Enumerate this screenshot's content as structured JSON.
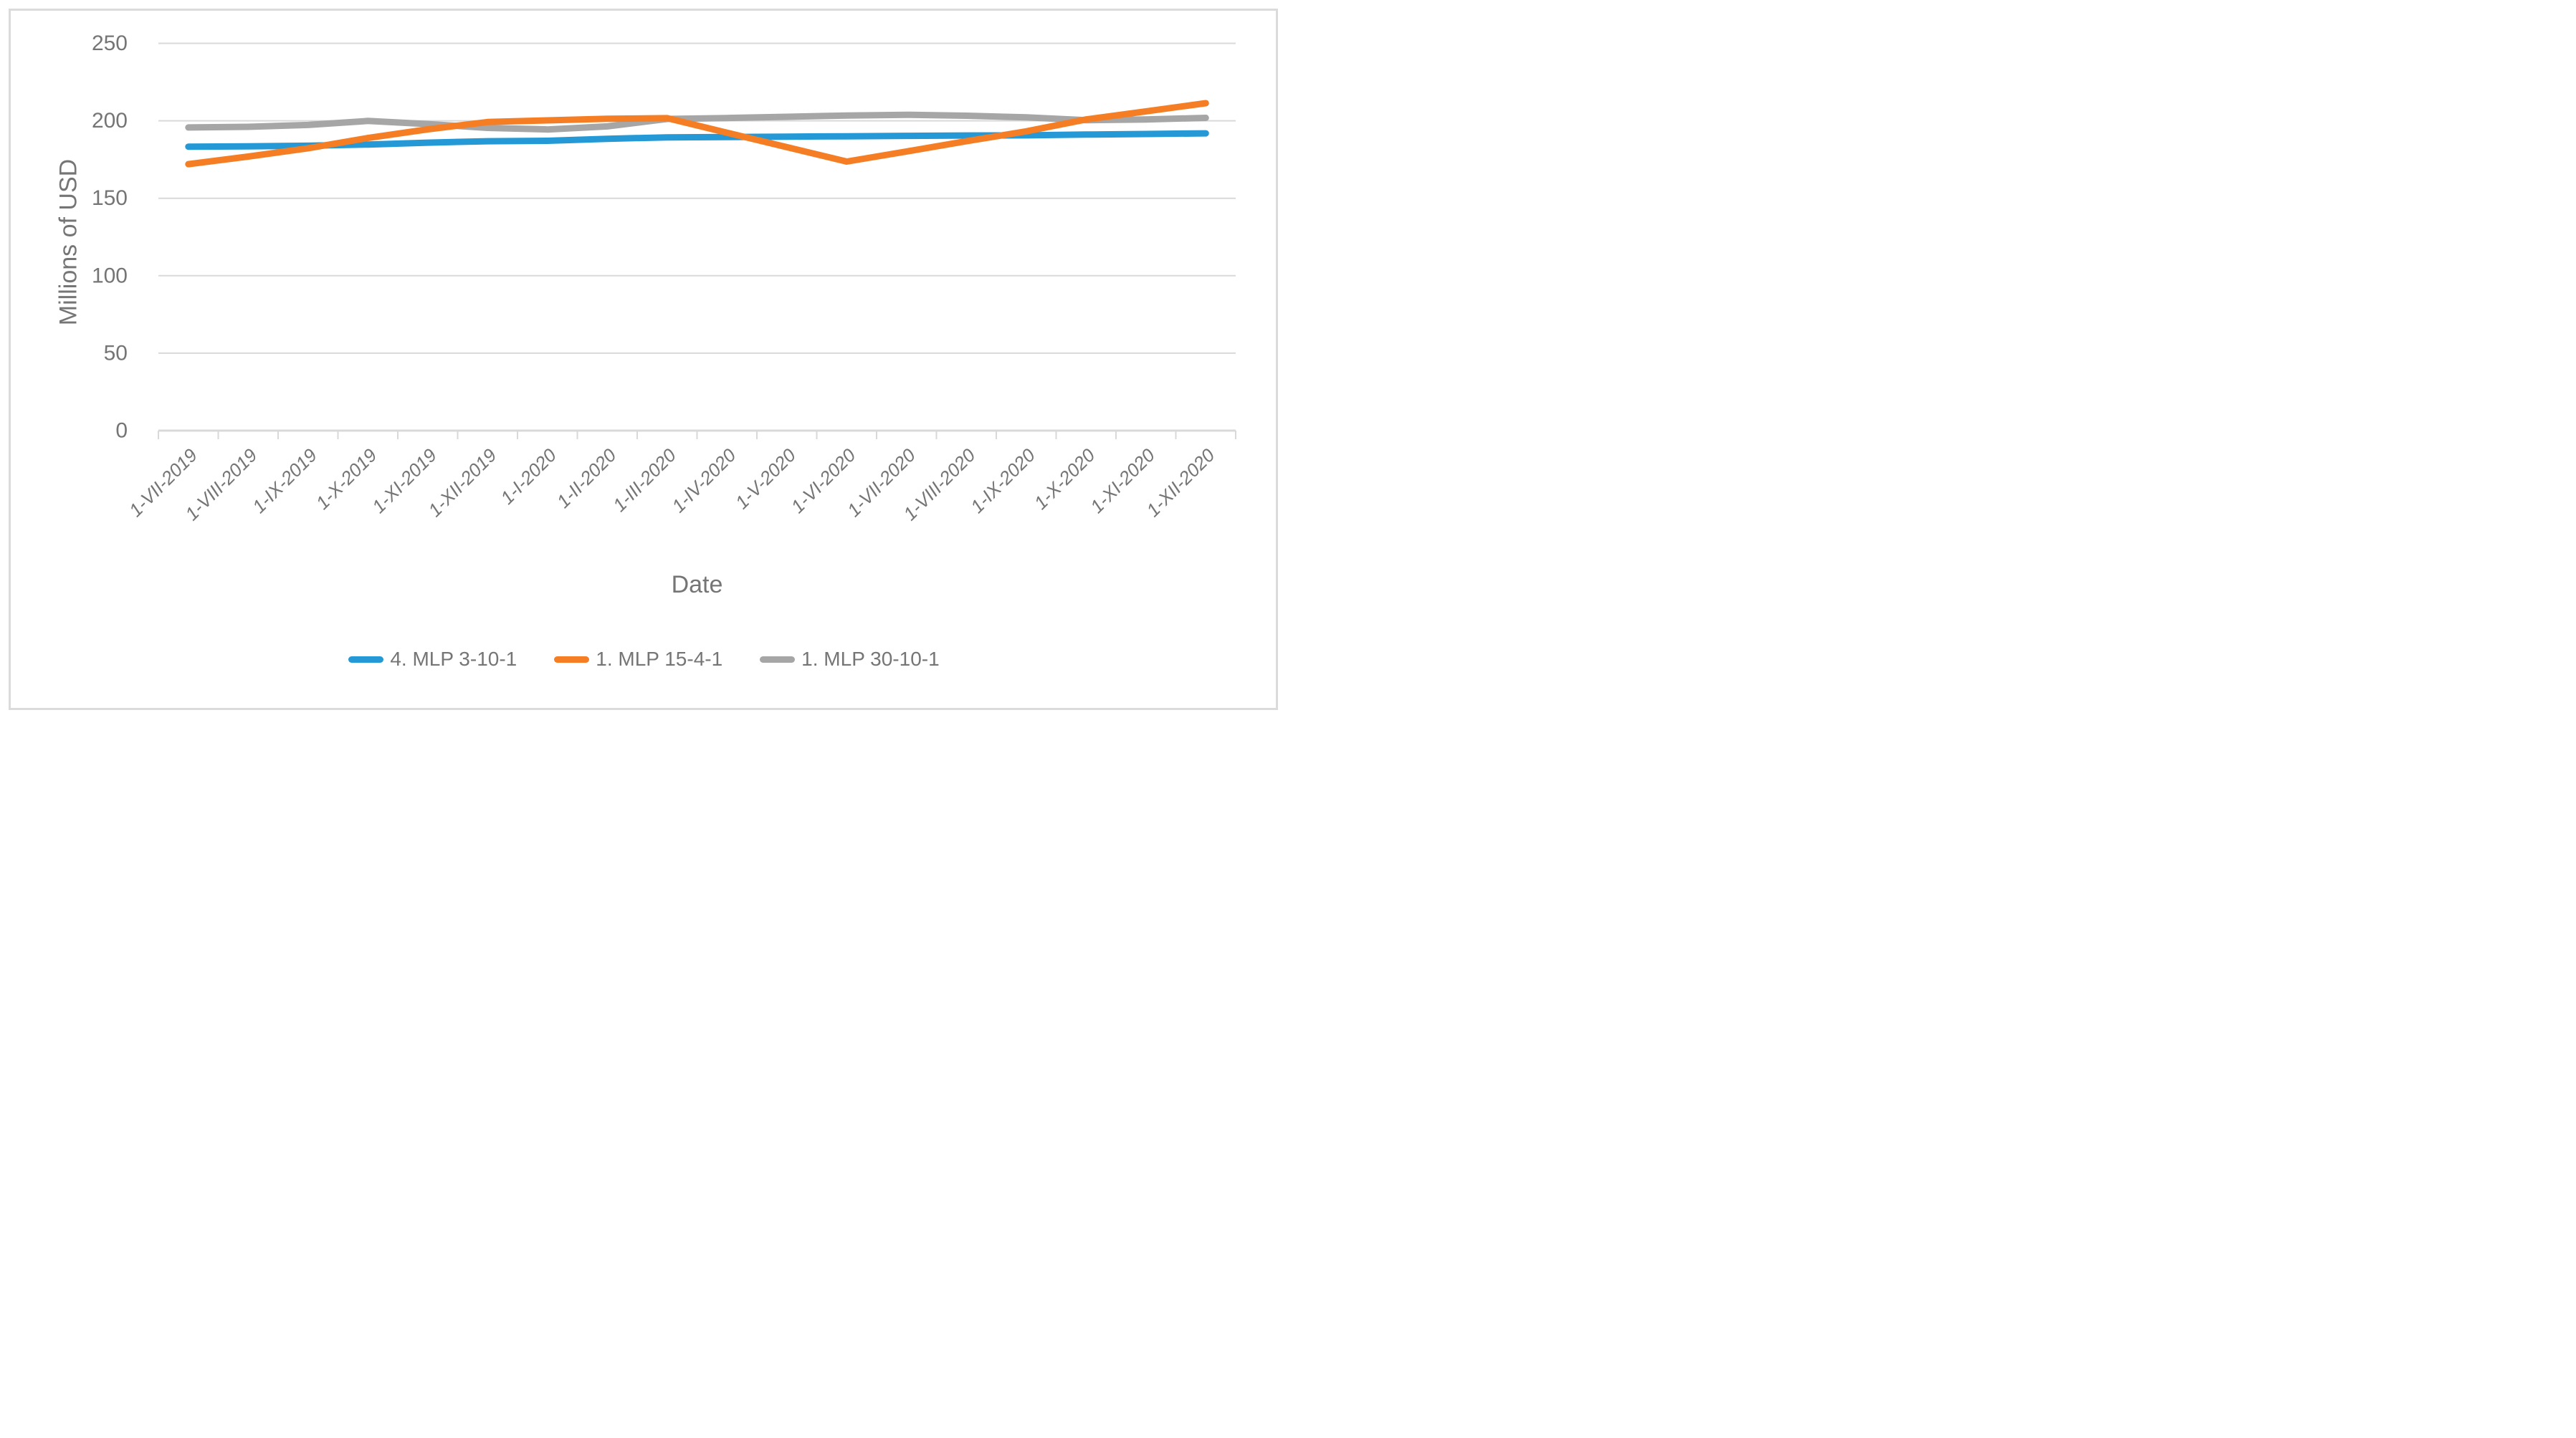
{
  "figure": {
    "background": "#FFFFFF",
    "frame_color": "#DBDBDB"
  },
  "chart_data": {
    "type": "line",
    "title": "",
    "xlabel": "Date",
    "ylabel": "Millions of USD",
    "ylim": [
      0,
      250
    ],
    "yticks": [
      250,
      200,
      150,
      100,
      50,
      0
    ],
    "grid": "horizontal",
    "gridline_color": "#D9D9D9",
    "axis_line_color": "#D9D9D9",
    "axis_text_color": "#757575",
    "legend_position": "bottom-center",
    "categories": [
      "1-VII-2019",
      "1-VIII-2019",
      "1-IX-2019",
      "1-X-2019",
      "1-XI-2019",
      "1-XII-2019",
      "1-I-2020",
      "1-II-2020",
      "1-III-2020",
      "1-IV-2020",
      "1-V-2020",
      "1-VI-2020",
      "1-VII-2020",
      "1-VIII-2020",
      "1-IX-2020",
      "1-X-2020",
      "1-XI-2020",
      "1-XII-2020"
    ],
    "series": [
      {
        "name": "4. MLP 3-10-1",
        "color": "#2499D6",
        "values": [
          183.3,
          183.5,
          183.9,
          184.7,
          185.9,
          186.8,
          187.1,
          188.4,
          189.3,
          189.5,
          189.8,
          190.0,
          190.3,
          190.5,
          190.6,
          191.1,
          191.5,
          191.9
        ]
      },
      {
        "name": "1. MLP 15-4-1",
        "color": "#F57E25",
        "values": [
          172.0,
          176.9,
          182.3,
          188.9,
          194.5,
          199.2,
          200.3,
          201.3,
          201.7,
          192.3,
          183.0,
          173.7,
          180.2,
          186.8,
          193.2,
          200.9,
          206.1,
          211.4
        ]
      },
      {
        "name": "1. MLP 30-10-1",
        "color": "#A6A6A6",
        "values": [
          195.7,
          196.1,
          197.3,
          199.9,
          197.9,
          195.4,
          194.4,
          196.4,
          201.2,
          201.8,
          202.6,
          203.4,
          203.9,
          203.3,
          202.2,
          200.4,
          200.9,
          201.9
        ]
      }
    ]
  }
}
